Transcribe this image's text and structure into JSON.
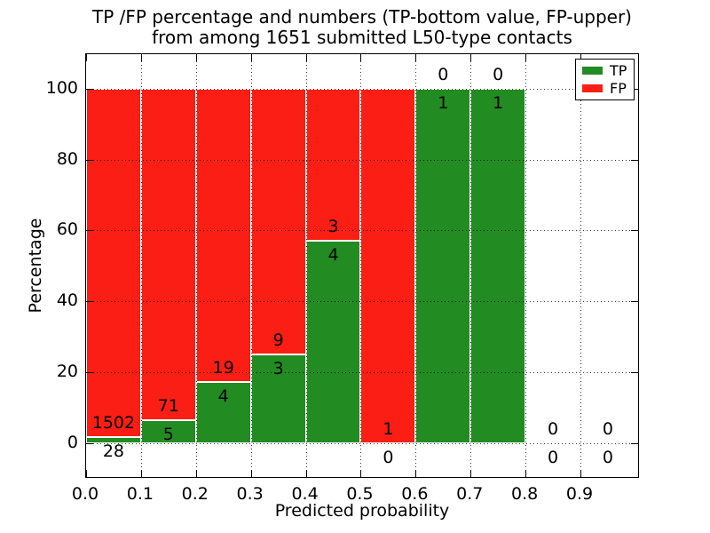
{
  "chart_data": {
    "type": "bar",
    "stacked": true,
    "title_line1": "TP /FP percentage and numbers (TP-bottom value, FP-upper)",
    "title_line2": "from among 1651 submitted L50-type contacts",
    "xlabel": "Predicted probability",
    "ylabel": "Percentage",
    "total_submitted": 1651,
    "xlim": [
      0,
      1.005
    ],
    "ylim": [
      -9.5,
      109.7
    ],
    "xtick_values": [
      0.0,
      0.1,
      0.2,
      0.3,
      0.4,
      0.5,
      0.6,
      0.7,
      0.8,
      0.9
    ],
    "xtick_labels": [
      "0.0",
      "0.1",
      "0.2",
      "0.3",
      "0.4",
      "0.5",
      "0.6",
      "0.7",
      "0.8",
      "0.9"
    ],
    "ytick_values": [
      0,
      20,
      40,
      60,
      80,
      100
    ],
    "ytick_labels": [
      "0",
      "20",
      "40",
      "60",
      "80",
      "100"
    ],
    "grid": {
      "style": "dotted",
      "color": "#000000"
    },
    "bars": [
      {
        "x0": 0.0,
        "x1": 0.1,
        "tp": 28,
        "fp": 1502,
        "tp_pct": 1.83
      },
      {
        "x0": 0.1,
        "x1": 0.2,
        "tp": 5,
        "fp": 71,
        "tp_pct": 6.58
      },
      {
        "x0": 0.2,
        "x1": 0.3,
        "tp": 4,
        "fp": 19,
        "tp_pct": 17.39
      },
      {
        "x0": 0.3,
        "x1": 0.4,
        "tp": 3,
        "fp": 9,
        "tp_pct": 25.0
      },
      {
        "x0": 0.4,
        "x1": 0.5,
        "tp": 4,
        "fp": 3,
        "tp_pct": 57.14
      },
      {
        "x0": 0.5,
        "x1": 0.6,
        "tp": 0,
        "fp": 1,
        "tp_pct": 0.0
      },
      {
        "x0": 0.6,
        "x1": 0.7,
        "tp": 1,
        "fp": 0,
        "tp_pct": 100.0
      },
      {
        "x0": 0.7,
        "x1": 0.8,
        "tp": 1,
        "fp": 0,
        "tp_pct": 100.0
      },
      {
        "x0": 0.8,
        "x1": 0.9,
        "tp": 0,
        "fp": 0,
        "tp_pct": null
      },
      {
        "x0": 0.9,
        "x1": 1.0,
        "tp": 0,
        "fp": 0,
        "tp_pct": null
      }
    ],
    "legend": {
      "position": "upper-right",
      "entries": [
        {
          "label": "TP",
          "color": "#228b22"
        },
        {
          "label": "FP",
          "color": "#fa1e14"
        }
      ]
    },
    "colors": {
      "tp": "#228b22",
      "fp": "#fa1e14",
      "background": "#ffffff",
      "text": "#000000"
    }
  }
}
